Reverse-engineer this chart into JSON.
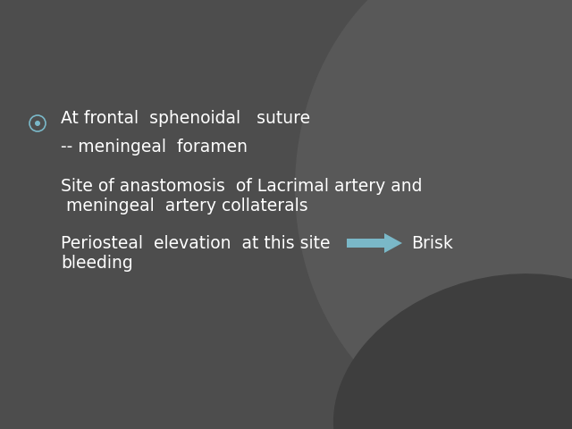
{
  "bg_color": "#4d4d4d",
  "bg_ellipse1_color": "#585858",
  "bg_ellipse2_color": "#3e3e3e",
  "text_color": "#ffffff",
  "bullet_outer_color": "#7ab8c8",
  "bullet_inner_color": "#7ab8c8",
  "arrow_color": "#7ab8c8",
  "line1": "At frontal  sphenoidal   suture",
  "line2": "-- meningeal  foramen",
  "line3": "Site of anastomosis  of Lacrimal artery and",
  "line4": " meningeal  artery collaterals",
  "line5": "Periosteal  elevation  at this site",
  "line5b": "Brisk",
  "line6": "bleeding",
  "font_size": 13.5,
  "figsize": [
    6.4,
    4.8
  ],
  "dpi": 100
}
